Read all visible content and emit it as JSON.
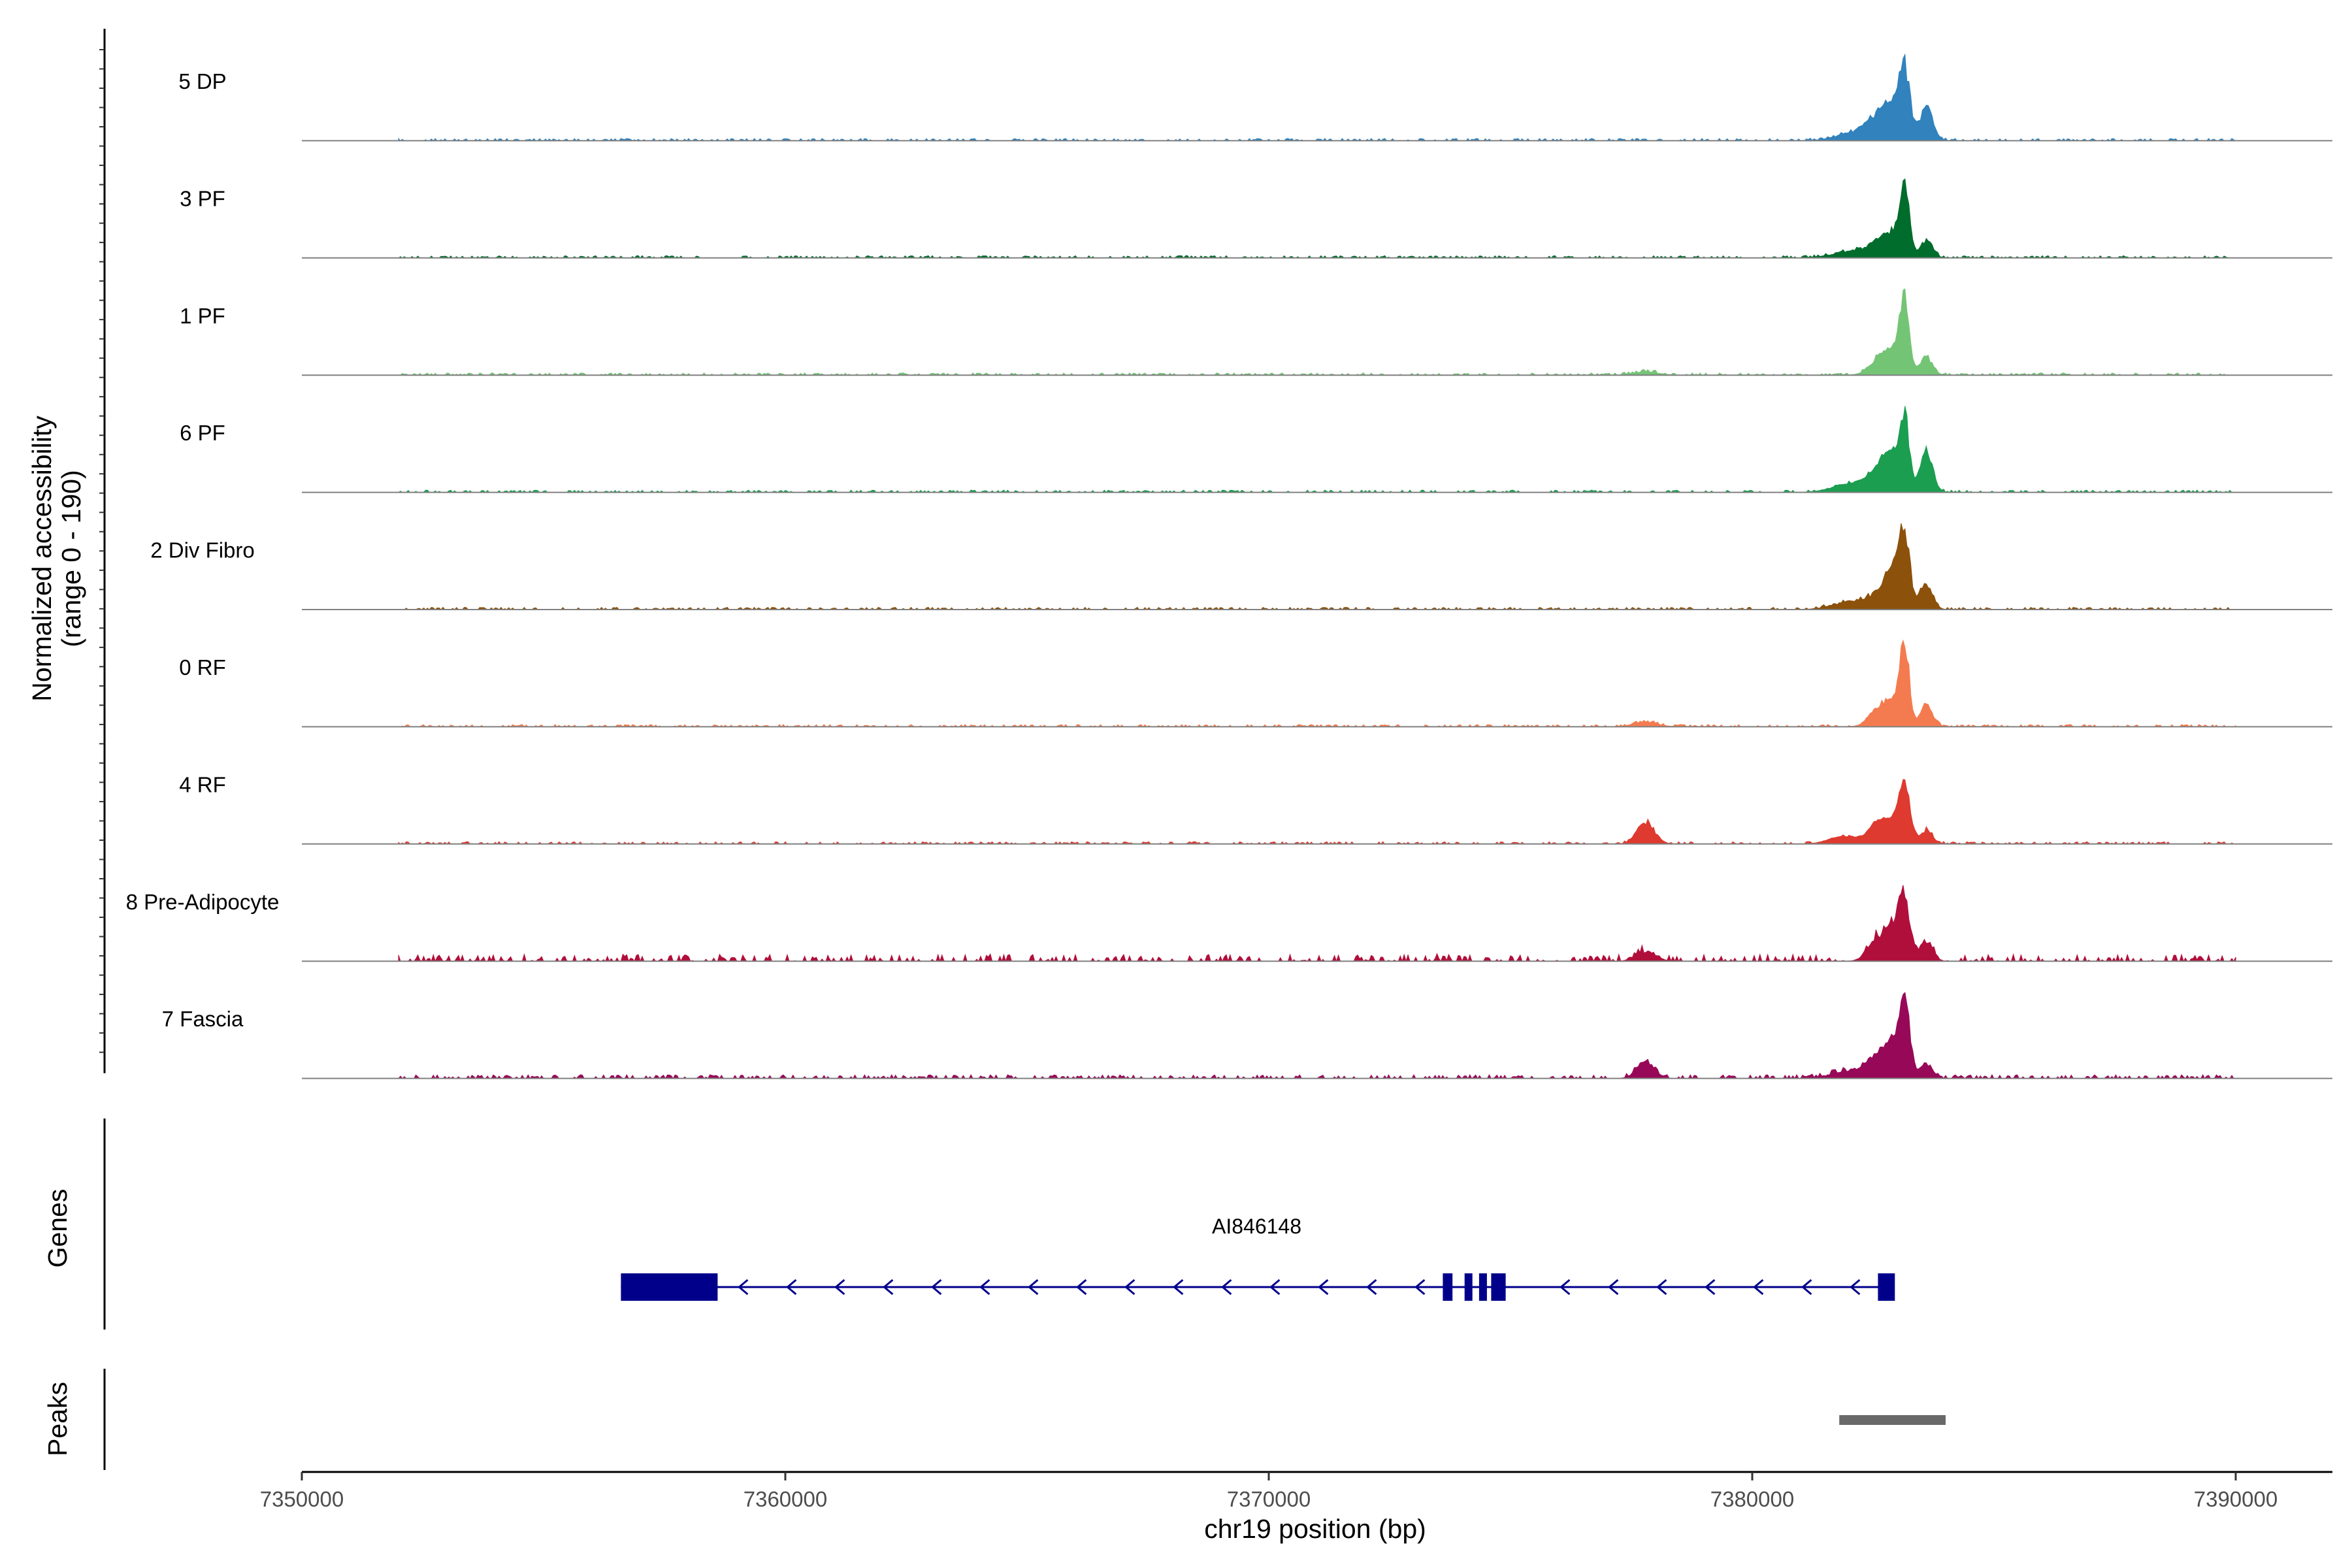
{
  "chart_data": {
    "type": "area",
    "title": "",
    "coverage": {
      "ylabel_line1": "Normalized accessibility",
      "ylabel_line2": "(range 0 - 190)",
      "ylim": [
        0,
        190
      ],
      "region": [
        7352000,
        7390000
      ],
      "tracks": [
        {
          "name": "5 DP",
          "color": "#3182BD",
          "baseline": 2,
          "noise": 3,
          "peaks": [
            [
              7382600,
              40,
              220
            ],
            [
              7382900,
              55,
              180
            ],
            [
              7383150,
              150,
              110
            ],
            [
              7383600,
              70,
              140
            ],
            [
              7382200,
              20,
              400
            ]
          ]
        },
        {
          "name": "3 PF",
          "color": "#006D2C",
          "baseline": 2,
          "noise": 3,
          "peaks": [
            [
              7382600,
              28,
              200
            ],
            [
              7382900,
              45,
              160
            ],
            [
              7383150,
              155,
              95
            ],
            [
              7383600,
              38,
              130
            ],
            [
              7382100,
              15,
              400
            ]
          ]
        },
        {
          "name": "1 PF",
          "color": "#74C476",
          "baseline": 2,
          "noise": 3,
          "peaks": [
            [
              7382600,
              32,
              200
            ],
            [
              7382900,
              50,
              160
            ],
            [
              7383150,
              165,
              95
            ],
            [
              7383600,
              40,
              130
            ],
            [
              7377800,
              8,
              250
            ]
          ]
        },
        {
          "name": "6 PF",
          "color": "#1B9E50",
          "baseline": 2,
          "noise": 3,
          "peaks": [
            [
              7382600,
              45,
              200
            ],
            [
              7382900,
              72,
              160
            ],
            [
              7383150,
              160,
              95
            ],
            [
              7383600,
              92,
              130
            ],
            [
              7382100,
              20,
              400
            ]
          ]
        },
        {
          "name": "2 Div Fibro",
          "color": "#8C510A",
          "baseline": 2,
          "noise": 3,
          "peaks": [
            [
              7382600,
              25,
              200
            ],
            [
              7382900,
              82,
              150
            ],
            [
              7383150,
              165,
              110
            ],
            [
              7383600,
              58,
              130
            ],
            [
              7382100,
              18,
              400
            ]
          ]
        },
        {
          "name": "0 RF",
          "color": "#F47B4F",
          "baseline": 2,
          "noise": 3,
          "peaks": [
            [
              7382600,
              35,
              200
            ],
            [
              7382900,
              45,
              160
            ],
            [
              7383150,
              175,
              95
            ],
            [
              7383600,
              48,
              130
            ],
            [
              7377800,
              10,
              250
            ]
          ]
        },
        {
          "name": "4 RF",
          "color": "#DE3A2F",
          "baseline": 2,
          "noise": 3,
          "peaks": [
            [
              7382600,
              42,
              200
            ],
            [
              7382900,
              38,
              160
            ],
            [
              7383150,
              130,
              110
            ],
            [
              7383600,
              30,
              130
            ],
            [
              7377800,
              48,
              180
            ],
            [
              7381900,
              18,
              300
            ]
          ]
        },
        {
          "name": "8 Pre-Adipocyte",
          "color": "#B10F3B",
          "baseline": 1,
          "noise": 14,
          "peaks": [
            [
              7382600,
              45,
              200
            ],
            [
              7382900,
              60,
              160
            ],
            [
              7383150,
              135,
              110
            ],
            [
              7383600,
              45,
              130
            ],
            [
              7377800,
              22,
              200
            ]
          ]
        },
        {
          "name": "7 Fascia",
          "color": "#980858",
          "baseline": 3,
          "noise": 5,
          "peaks": [
            [
              7382600,
              42,
              200
            ],
            [
              7382900,
              58,
              160
            ],
            [
              7383150,
              155,
              110
            ],
            [
              7383600,
              30,
              130
            ],
            [
              7377800,
              38,
              180
            ],
            [
              7382100,
              18,
              400
            ]
          ]
        }
      ]
    },
    "genes": {
      "label": "Genes",
      "color": "#00008B",
      "gene": {
        "name": "AI846148",
        "strand": "-",
        "start": 7356600,
        "end": 7382900,
        "exons": [
          [
            7356600,
            7358600
          ],
          [
            7373600,
            7373800
          ],
          [
            7374050,
            7374200
          ],
          [
            7374350,
            7374500
          ],
          [
            7374600,
            7374900
          ],
          [
            7382600,
            7382950
          ]
        ]
      }
    },
    "peaks": {
      "label": "Peaks",
      "color": "#696969",
      "regions": [
        [
          7381800,
          7384000
        ]
      ]
    },
    "xaxis": {
      "xlabel": "chr19 position (bp)",
      "xlim": [
        7350000,
        7392000
      ],
      "ticks": [
        7350000,
        7360000,
        7370000,
        7380000,
        7390000
      ],
      "tick_labels": [
        "7350000",
        "7360000",
        "7370000",
        "7380000",
        "7390000"
      ]
    }
  }
}
